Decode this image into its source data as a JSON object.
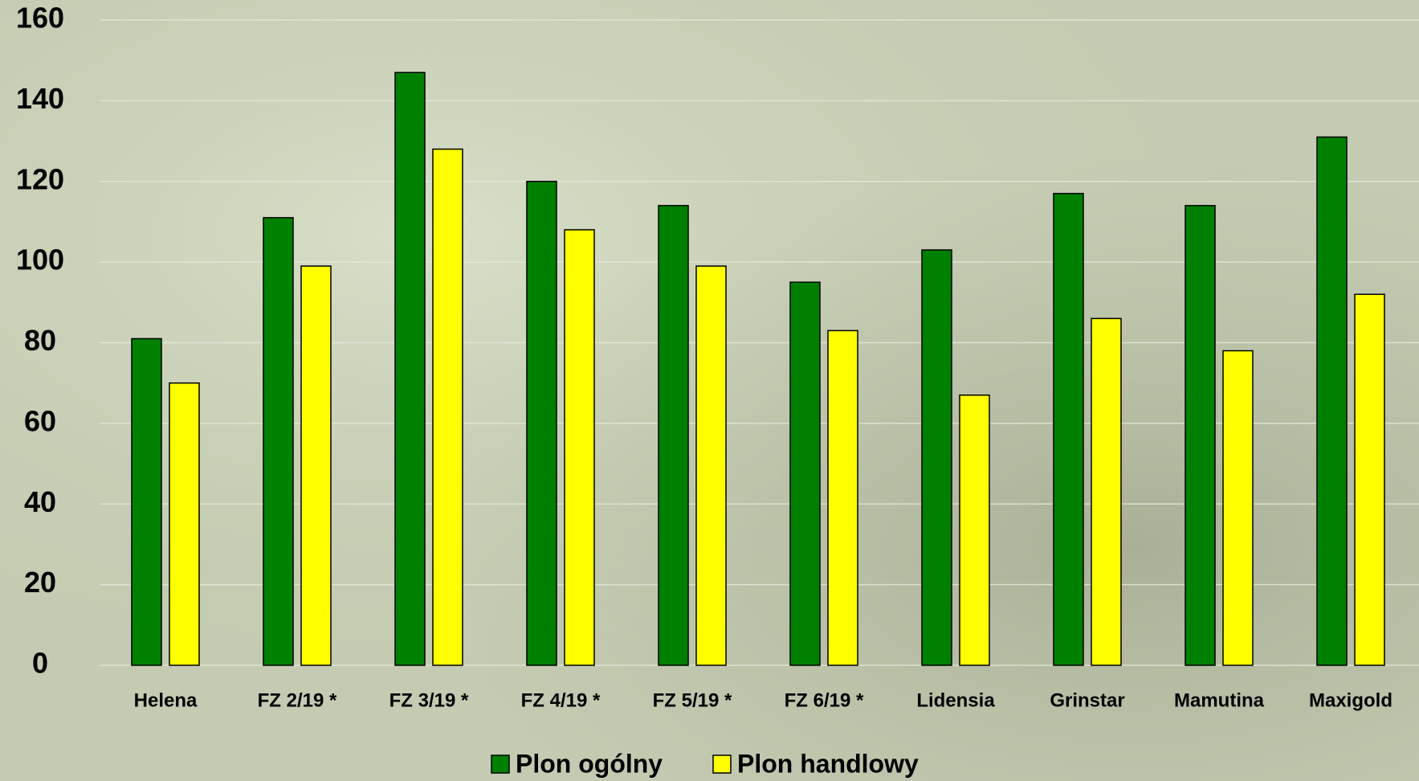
{
  "chart_data": {
    "type": "bar",
    "categories": [
      "Helena",
      "FZ 2/19 *",
      "FZ 3/19 *",
      "FZ 4/19 *",
      "FZ 5/19 *",
      "FZ 6/19 *",
      "Lidensia",
      "Grinstar",
      "Mamutina",
      "Maxigold"
    ],
    "series": [
      {
        "name": "Plon ogólny",
        "color": "#008000",
        "values": [
          81,
          111,
          147,
          120,
          114,
          95,
          103,
          117,
          114,
          131
        ]
      },
      {
        "name": "Plon handlowy",
        "color": "#ffff00",
        "values": [
          70,
          99,
          128,
          108,
          99,
          83,
          67,
          86,
          78,
          92
        ]
      }
    ],
    "ylim": [
      0,
      160
    ],
    "yticks": [
      0,
      20,
      40,
      60,
      80,
      100,
      120,
      140,
      160
    ],
    "grid": true,
    "legend": "bottom"
  }
}
